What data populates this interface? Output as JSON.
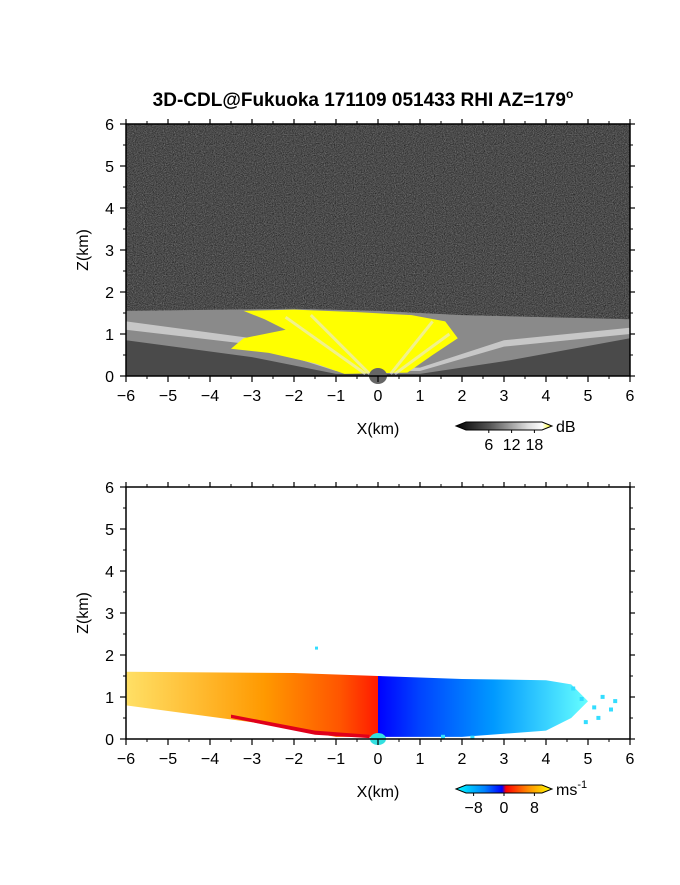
{
  "title": "3D-CDL@Fukuoka 171109 051433 RHI AZ=179",
  "title_degree": "o",
  "colors": {
    "snr_high": "#ffff00",
    "noise_dark": "#2a2a2a",
    "velocity_scale": [
      "#00ffff",
      "#0000ff",
      "#ff0000",
      "#ffa500",
      "#ffff00"
    ]
  },
  "chart_data": [
    {
      "type": "heatmap",
      "name": "snr-panel",
      "xlabel": "X(km)",
      "ylabel": "Z(km)",
      "xlim": [
        -6,
        6
      ],
      "ylim": [
        0,
        6
      ],
      "xticks": [
        "-6",
        "-5",
        "-4",
        "-3",
        "-2",
        "-1",
        "0",
        "1",
        "2",
        "3",
        "4",
        "5",
        "6"
      ],
      "yticks": [
        "0",
        "1",
        "2",
        "3",
        "4",
        "5",
        "6"
      ],
      "x_values": [
        -6,
        -5,
        -4,
        -3,
        -2,
        -1,
        0,
        1,
        2,
        3,
        4,
        5,
        6
      ],
      "y_values": [
        0,
        1,
        2,
        3,
        4,
        5,
        6
      ],
      "colorbar": {
        "unit": "dB",
        "tick_labels": [
          "6",
          "12",
          "18"
        ],
        "tick_values": [
          6,
          12,
          18
        ],
        "range": [
          0,
          20
        ]
      },
      "grid": false
    },
    {
      "type": "heatmap",
      "name": "velocity-panel",
      "xlabel": "X(km)",
      "ylabel": "Z(km)",
      "xlim": [
        -6,
        6
      ],
      "ylim": [
        0,
        6
      ],
      "xticks": [
        "-6",
        "-5",
        "-4",
        "-3",
        "-2",
        "-1",
        "0",
        "1",
        "2",
        "3",
        "4",
        "5",
        "6"
      ],
      "yticks": [
        "0",
        "1",
        "2",
        "3",
        "4",
        "5",
        "6"
      ],
      "x_values": [
        -6,
        -5,
        -4,
        -3,
        -2,
        -1,
        0,
        1,
        2,
        3,
        4,
        5,
        6
      ],
      "y_values": [
        0,
        1,
        2,
        3,
        4,
        5,
        6
      ],
      "colorbar": {
        "unit": "ms",
        "unit_exponent": "-1",
        "tick_labels": [
          "-8",
          "0",
          "8"
        ],
        "tick_values": [
          -8,
          0,
          8
        ],
        "range": [
          -10,
          10
        ]
      },
      "grid": false
    }
  ]
}
